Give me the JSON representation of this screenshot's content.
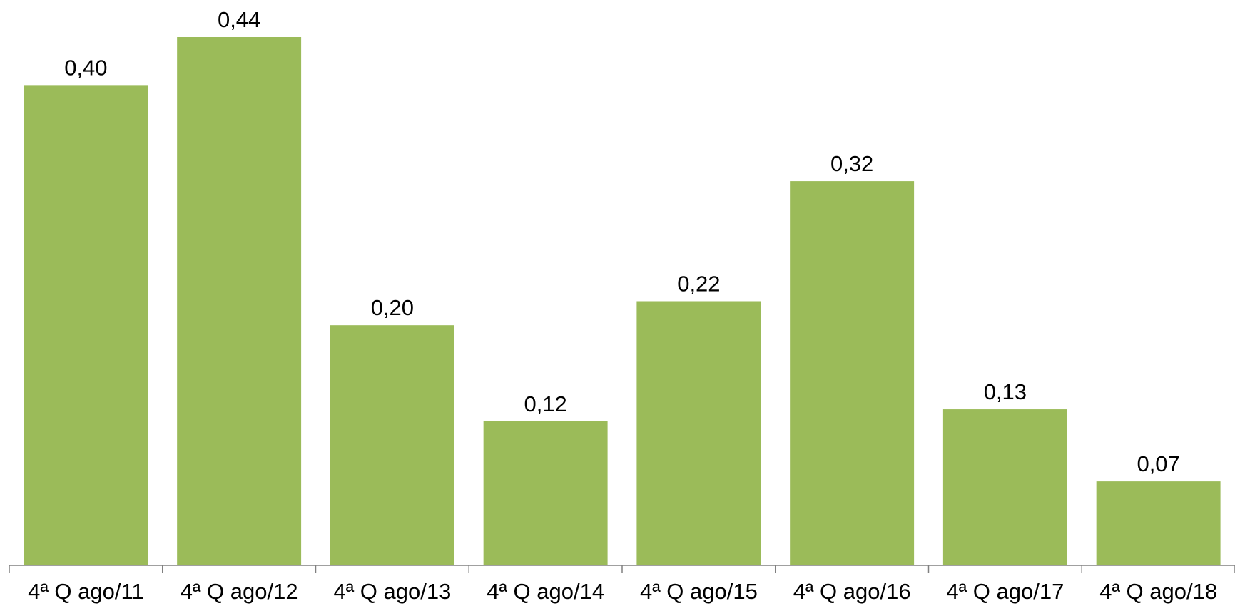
{
  "chart_data": {
    "type": "bar",
    "title": "",
    "xlabel": "",
    "ylabel": "",
    "categories": [
      "4ª Q ago/11",
      "4ª Q ago/12",
      "4ª Q ago/13",
      "4ª Q ago/14",
      "4ª Q ago/15",
      "4ª Q ago/16",
      "4ª Q ago/17",
      "4ª Q ago/18"
    ],
    "values": [
      0.4,
      0.44,
      0.2,
      0.12,
      0.22,
      0.32,
      0.13,
      0.07
    ],
    "value_labels": [
      "0,40",
      "0,44",
      "0,20",
      "0,12",
      "0,22",
      "0,32",
      "0,13",
      "0,07"
    ],
    "ylim": [
      0,
      0.44
    ],
    "grid": false,
    "legend": "none",
    "bar_color": "#9BBB59",
    "axis_color": "#808080"
  }
}
